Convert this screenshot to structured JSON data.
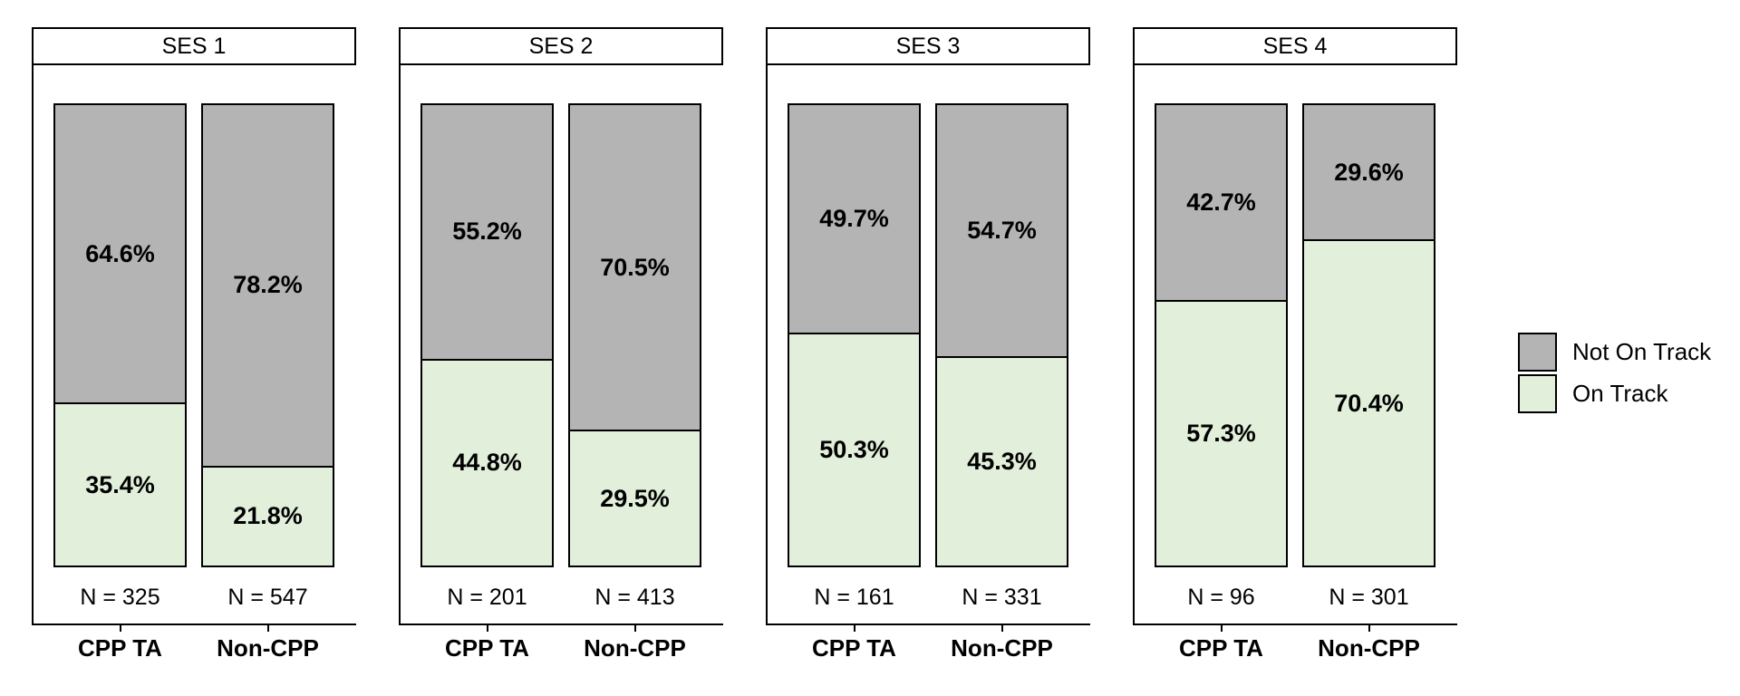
{
  "chart_data": {
    "type": "bar",
    "subtype": "stacked-percent-faceted",
    "categories": [
      "CPP TA",
      "Non-CPP"
    ],
    "series_names": [
      "Not On Track",
      "On Track"
    ],
    "ylim": [
      0,
      100
    ],
    "grid": false,
    "legend_position": "right",
    "colors": {
      "not_on_track": "#b4b4b4",
      "on_track": "#e2efda",
      "outline": "#000000",
      "strip_background": "#ffffff"
    },
    "facets": [
      {
        "label": "SES 1",
        "bars": [
          {
            "group": "CPP TA",
            "n_label": "N = 325",
            "segments": [
              {
                "name": "Not On Track",
                "value": 64.6,
                "label": "64.6%"
              },
              {
                "name": "On Track",
                "value": 35.4,
                "label": "35.4%"
              }
            ]
          },
          {
            "group": "Non-CPP",
            "n_label": "N = 547",
            "segments": [
              {
                "name": "Not On Track",
                "value": 78.2,
                "label": "78.2%"
              },
              {
                "name": "On Track",
                "value": 21.8,
                "label": "21.8%"
              }
            ]
          }
        ]
      },
      {
        "label": "SES 2",
        "bars": [
          {
            "group": "CPP TA",
            "n_label": "N = 201",
            "segments": [
              {
                "name": "Not On Track",
                "value": 55.2,
                "label": "55.2%"
              },
              {
                "name": "On Track",
                "value": 44.8,
                "label": "44.8%"
              }
            ]
          },
          {
            "group": "Non-CPP",
            "n_label": "N = 413",
            "segments": [
              {
                "name": "Not On Track",
                "value": 70.5,
                "label": "70.5%"
              },
              {
                "name": "On Track",
                "value": 29.5,
                "label": "29.5%"
              }
            ]
          }
        ]
      },
      {
        "label": "SES 3",
        "bars": [
          {
            "group": "CPP TA",
            "n_label": "N = 161",
            "segments": [
              {
                "name": "Not On Track",
                "value": 49.7,
                "label": "49.7%"
              },
              {
                "name": "On Track",
                "value": 50.3,
                "label": "50.3%"
              }
            ]
          },
          {
            "group": "Non-CPP",
            "n_label": "N = 331",
            "segments": [
              {
                "name": "Not On Track",
                "value": 54.7,
                "label": "54.7%"
              },
              {
                "name": "On Track",
                "value": 45.3,
                "label": "45.3%"
              }
            ]
          }
        ]
      },
      {
        "label": "SES 4",
        "bars": [
          {
            "group": "CPP TA",
            "n_label": "N = 96",
            "segments": [
              {
                "name": "Not On Track",
                "value": 42.7,
                "label": "42.7%"
              },
              {
                "name": "On Track",
                "value": 57.3,
                "label": "57.3%"
              }
            ]
          },
          {
            "group": "Non-CPP",
            "n_label": "N = 301",
            "segments": [
              {
                "name": "Not On Track",
                "value": 29.6,
                "label": "29.6%"
              },
              {
                "name": "On Track",
                "value": 70.4,
                "label": "70.4%"
              }
            ]
          }
        ]
      }
    ],
    "legend": {
      "entries": [
        {
          "label": "Not On Track",
          "color": "#b4b4b4"
        },
        {
          "label": "On Track",
          "color": "#e2efda"
        }
      ]
    }
  }
}
